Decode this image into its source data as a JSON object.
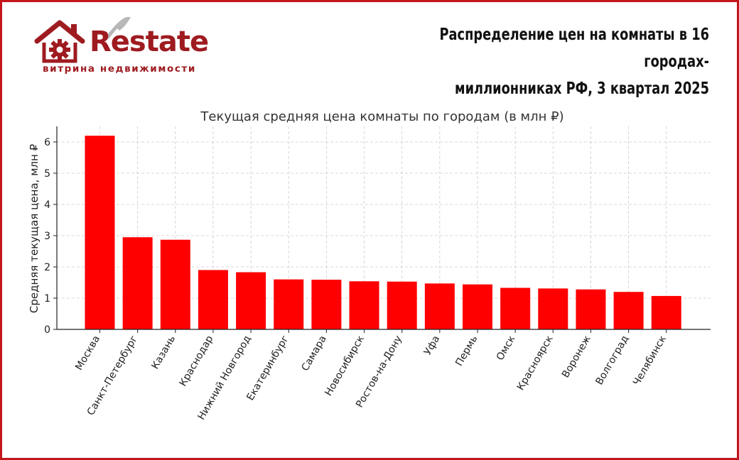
{
  "brand": {
    "name": "Restate",
    "tagline": "витрина недвижимости",
    "color": "#9e1b20"
  },
  "headline": {
    "line1": "Распределение цен на комнаты в 16 городах-",
    "line2": "миллионниках РФ, 3 квартал 2025"
  },
  "chart_data": {
    "type": "bar",
    "title": "Текущая средняя цена комнаты по городам (в млн ₽)",
    "xlabel": "",
    "ylabel": "Средняя текущая цена, млн ₽",
    "ylim": [
      0,
      6.5
    ],
    "yticks": [
      0,
      1,
      2,
      3,
      4,
      5,
      6
    ],
    "grid": true,
    "bar_color": "#ff0000",
    "categories": [
      "Москва",
      "Санкт-Петербург",
      "Казань",
      "Краснодар",
      "Нижний Новгород",
      "Екатеринбург",
      "Самара",
      "Новосибирск",
      "Ростов-на-Дону",
      "Уфа",
      "Пермь",
      "Омск",
      "Красноярск",
      "Воронеж",
      "Волгоград",
      "Челябинск"
    ],
    "values": [
      6.2,
      2.95,
      2.87,
      1.9,
      1.83,
      1.6,
      1.59,
      1.54,
      1.53,
      1.47,
      1.44,
      1.33,
      1.31,
      1.28,
      1.2,
      1.07
    ]
  }
}
